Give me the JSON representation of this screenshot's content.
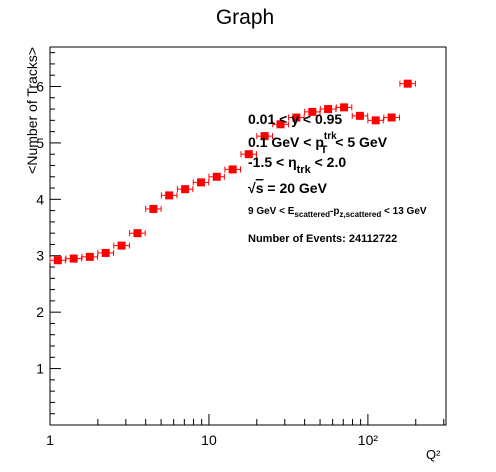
{
  "chart_data": {
    "type": "scatter",
    "title": "Graph",
    "xlabel": "Q²",
    "ylabel": "<Number of Tracks>",
    "x_scale": "log",
    "xlim": [
      1,
      310
    ],
    "ylim": [
      0,
      6.7
    ],
    "x_tick_labels": [
      "1",
      "10",
      "10²"
    ],
    "y_ticks": [
      1,
      2,
      3,
      4,
      5,
      6
    ],
    "grid": false,
    "marker_color": "#ff0000",
    "series": [
      {
        "x": [
          1.12,
          1.41,
          1.78,
          2.24,
          2.82,
          3.55,
          4.47,
          5.62,
          7.08,
          8.91,
          11.2,
          14.1,
          17.8,
          22.4,
          28.2,
          35.5,
          44.7,
          56.2,
          70.8,
          89.1,
          112,
          141,
          178
        ],
        "y": [
          2.92,
          2.95,
          2.98,
          3.05,
          3.18,
          3.4,
          3.83,
          4.07,
          4.18,
          4.3,
          4.4,
          4.53,
          4.8,
          5.12,
          5.33,
          5.45,
          5.55,
          5.6,
          5.63,
          5.48,
          5.4,
          5.45,
          6.05
        ],
        "xerr_lo": [
          0.12,
          0.15,
          0.19,
          0.24,
          0.3,
          0.38,
          0.47,
          0.6,
          0.75,
          0.94,
          1.2,
          1.5,
          1.9,
          2.4,
          3.0,
          3.8,
          4.7,
          6.0,
          7.5,
          9.4,
          12,
          15,
          19
        ],
        "xerr_hi": [
          0.13,
          0.17,
          0.21,
          0.27,
          0.34,
          0.42,
          0.53,
          0.67,
          0.84,
          1.06,
          1.3,
          1.7,
          2.1,
          2.7,
          3.4,
          4.2,
          5.3,
          6.7,
          8.4,
          10.6,
          13,
          17,
          21
        ]
      }
    ],
    "annotations": [
      {
        "id": "y-range",
        "base": "0.01 < y < 0.95"
      },
      {
        "id": "pt-range",
        "pre": "0.1 GeV < p",
        "sup": "trk",
        "sub": "T",
        "post": " < 5 GeV"
      },
      {
        "id": "eta-range",
        "pre": "-1.5 <  η",
        "sub": "trk",
        "post": " < 2.0"
      },
      {
        "id": "sqrt-s",
        "root": "√",
        "radicand": "s",
        "post": " = 20 GeV"
      },
      {
        "id": "e-pz",
        "pre": "9 GeV < E",
        "sub1": "scattered",
        "mid": "-p",
        "sub2": "z,scattered",
        "post": " < 13 GeV"
      },
      {
        "id": "events",
        "base": "Number of Events: 24112722"
      }
    ]
  }
}
